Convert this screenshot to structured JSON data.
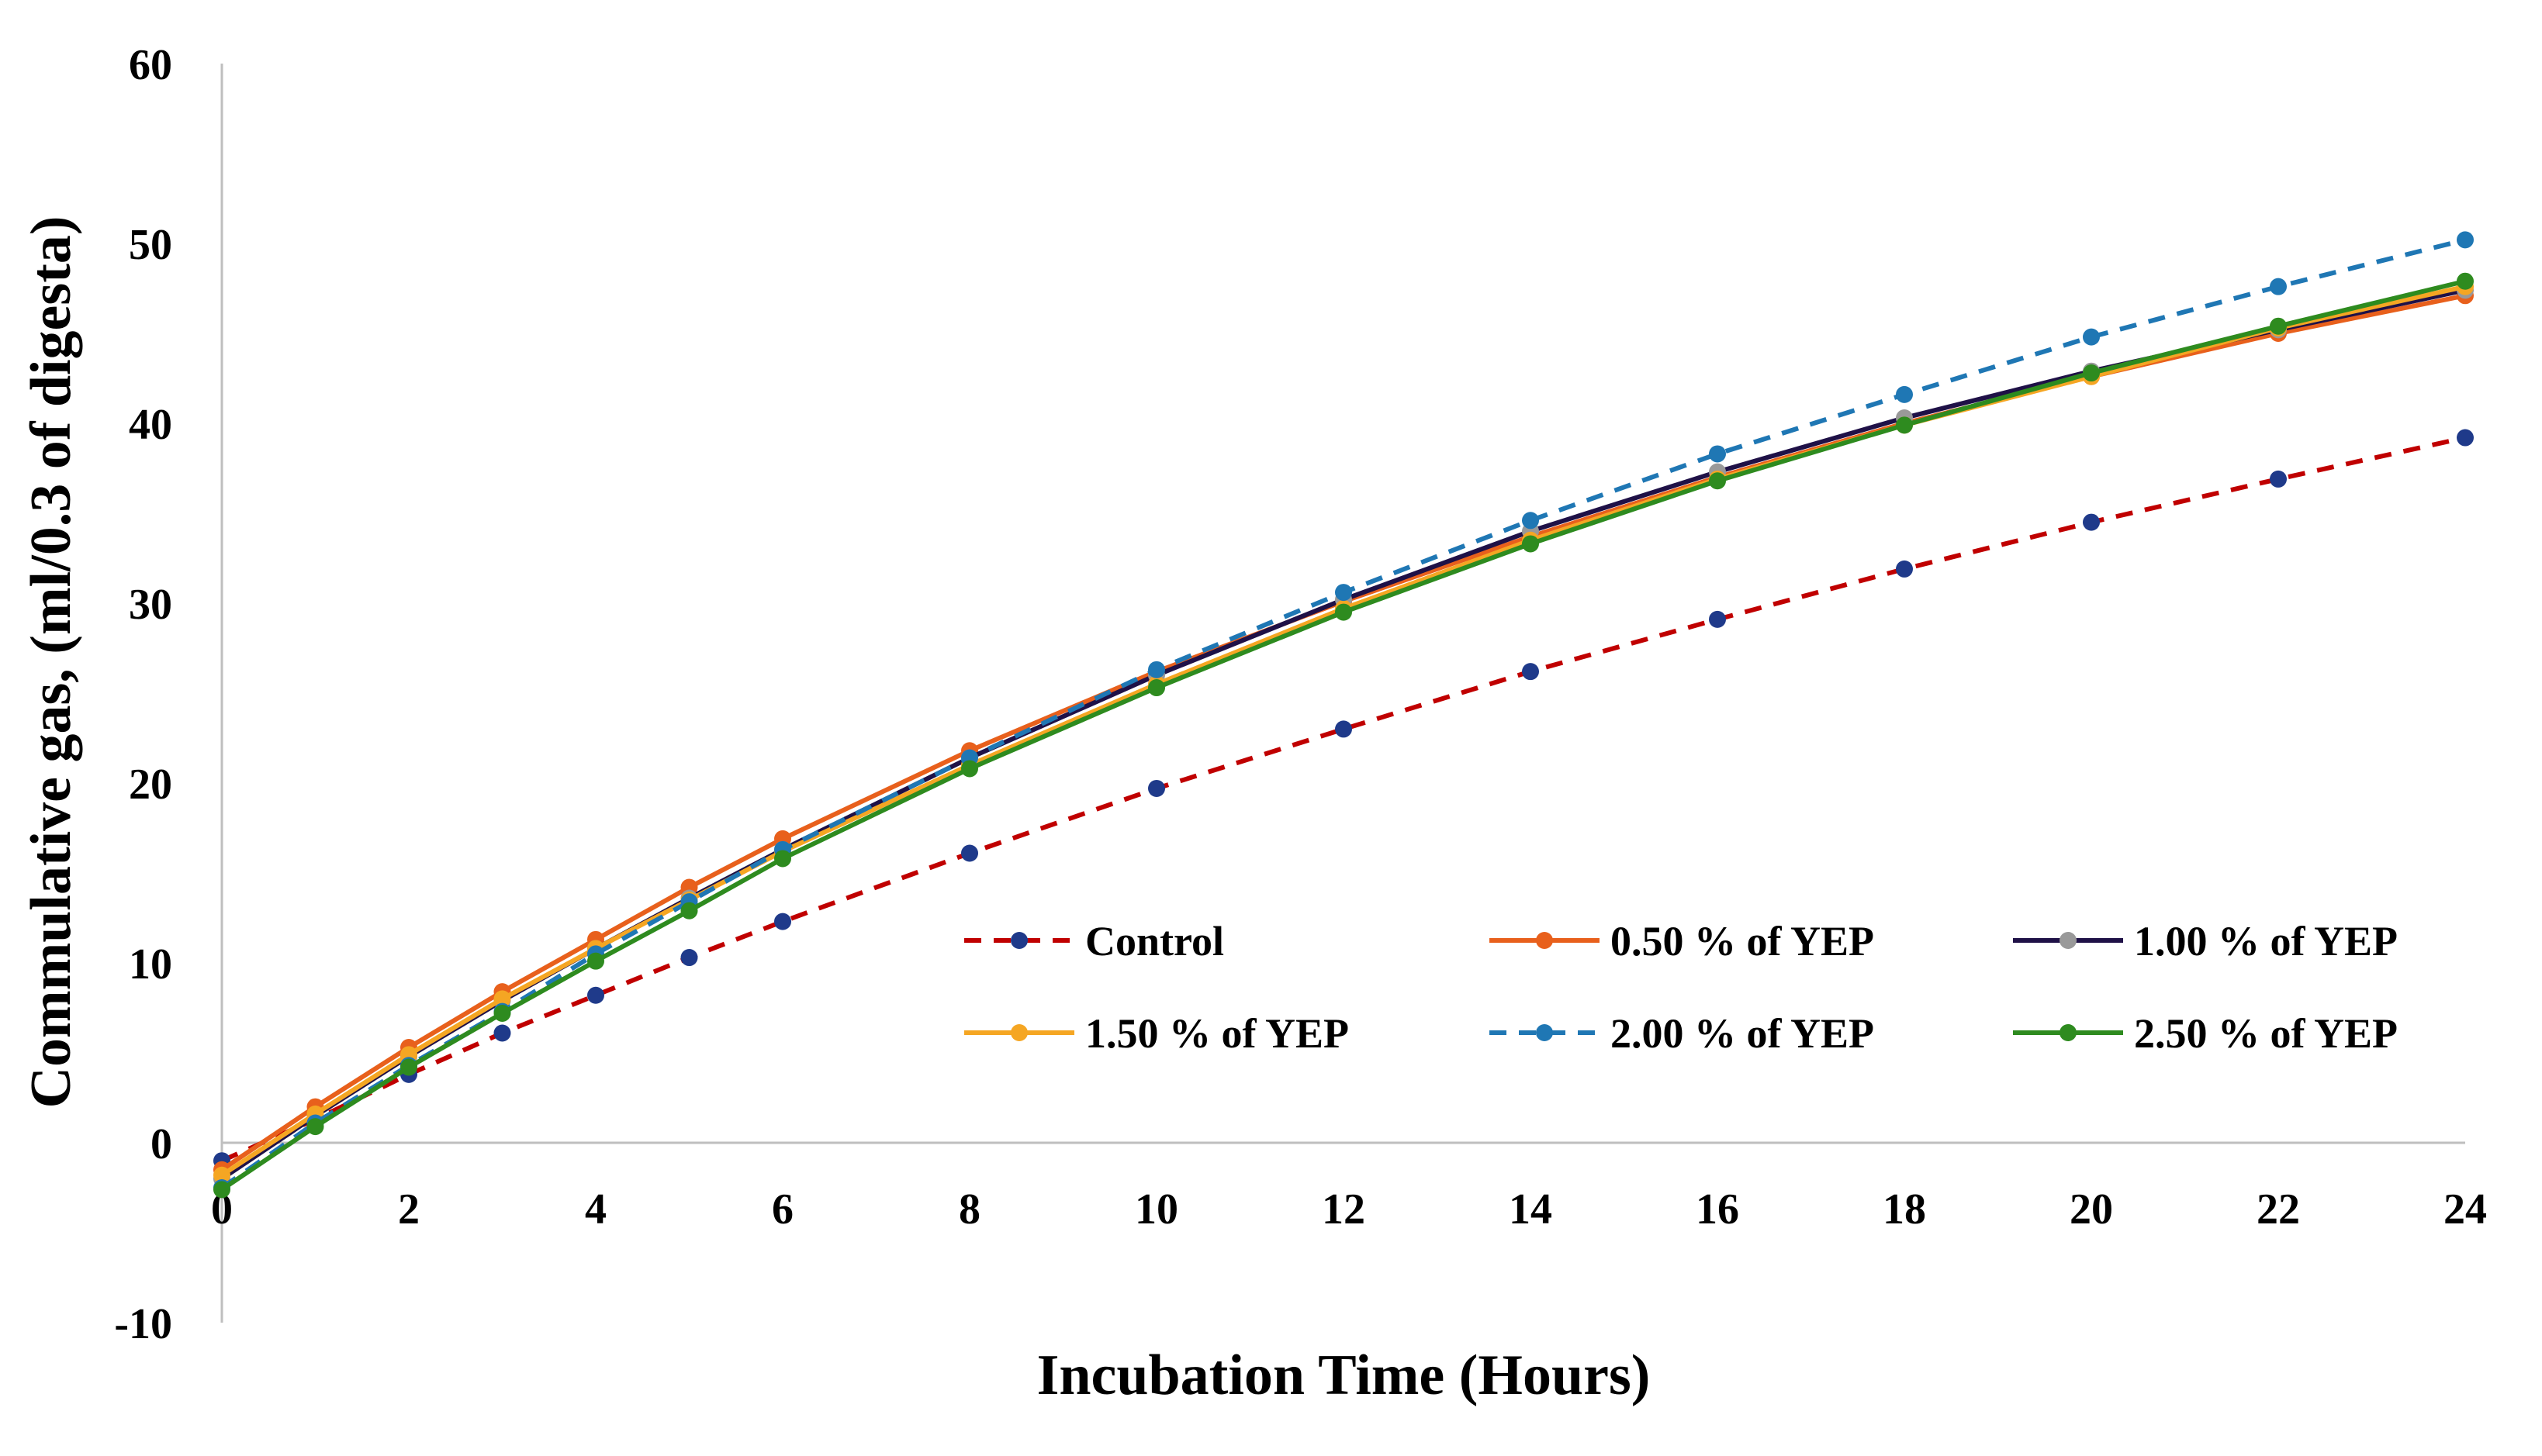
{
  "chart_data": {
    "type": "line",
    "xlabel": "Incubation Time (Hours)",
    "ylabel": "Commulative gas, (ml/0.3 of digesta)",
    "xlim": [
      0,
      24
    ],
    "ylim": [
      -10,
      60
    ],
    "x_ticks": [
      "0",
      "2",
      "4",
      "6",
      "8",
      "10",
      "12",
      "14",
      "16",
      "18",
      "20",
      "22",
      "24"
    ],
    "y_ticks": [
      "-10",
      "0",
      "10",
      "20",
      "30",
      "40",
      "50",
      "60"
    ],
    "grid": false,
    "legend": "inside-lower-right",
    "x": [
      0,
      1,
      2,
      3,
      4,
      5,
      6,
      8,
      10,
      12,
      14,
      16,
      18,
      20,
      22,
      24
    ],
    "series": [
      {
        "name": "Control",
        "color": "#c00000",
        "marker_color": "#1f3a8a",
        "dash": true,
        "values": [
          -1.0,
          1.3,
          3.8,
          6.1,
          8.2,
          10.3,
          12.3,
          16.1,
          19.7,
          23.0,
          26.2,
          29.1,
          31.9,
          34.5,
          36.9,
          39.2
        ]
      },
      {
        "name": "0.50 % of YEP",
        "color": "#e8601c",
        "marker_color": "#e8601c",
        "dash": false,
        "values": [
          -1.5,
          2.0,
          5.3,
          8.4,
          11.3,
          14.2,
          16.9,
          21.8,
          26.2,
          30.1,
          33.7,
          37.0,
          40.0,
          42.6,
          45.0,
          47.1
        ]
      },
      {
        "name": "1.00 % of YEP",
        "color": "#1f1147",
        "marker_color": "#999999",
        "dash": false,
        "values": [
          -2.0,
          1.5,
          4.8,
          7.9,
          10.8,
          13.6,
          16.3,
          21.4,
          26.0,
          30.2,
          34.0,
          37.3,
          40.3,
          42.9,
          45.2,
          47.4
        ]
      },
      {
        "name": "1.50 % of YEP",
        "color": "#f5a623",
        "marker_color": "#f5a623",
        "dash": false,
        "values": [
          -1.8,
          1.6,
          4.9,
          8.0,
          10.8,
          13.5,
          16.2,
          21.0,
          25.5,
          29.7,
          33.5,
          36.9,
          39.9,
          42.6,
          45.3,
          47.6
        ]
      },
      {
        "name": "2.00 % of YEP",
        "color": "#1f77b4",
        "marker_color": "#1f77b4",
        "dash": true,
        "values": [
          -2.5,
          1.1,
          4.3,
          7.3,
          10.5,
          13.4,
          16.3,
          21.4,
          26.3,
          30.6,
          34.6,
          38.3,
          41.6,
          44.8,
          47.6,
          50.2
        ]
      },
      {
        "name": "2.50 % of YEP",
        "color": "#2e8b1f",
        "marker_color": "#2e8b1f",
        "dash": false,
        "values": [
          -2.6,
          0.9,
          4.2,
          7.2,
          10.1,
          12.9,
          15.8,
          20.8,
          25.3,
          29.5,
          33.3,
          36.8,
          39.9,
          42.8,
          45.4,
          47.9
        ]
      }
    ]
  }
}
